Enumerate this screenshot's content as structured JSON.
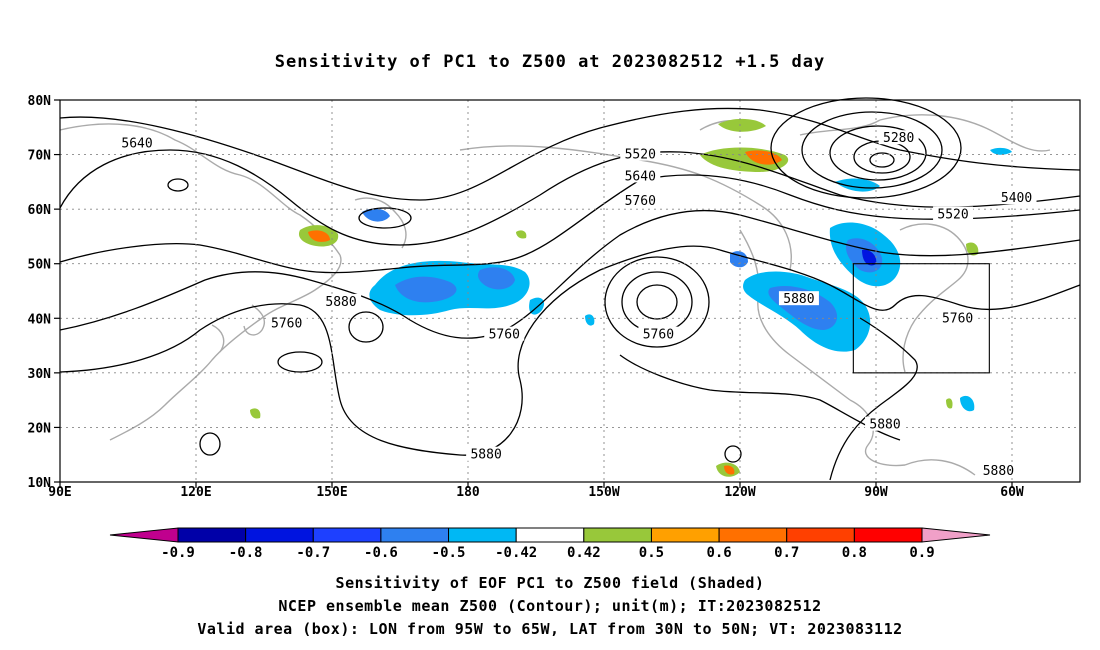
{
  "title": "Sensitivity of PC1 to Z500 at 2023082512 +1.5 day",
  "map": {
    "lat_labels": [
      "80N",
      "70N",
      "60N",
      "50N",
      "40N",
      "30N",
      "20N",
      "10N"
    ],
    "lon_labels": [
      "90E",
      "120E",
      "150E",
      "180",
      "150W",
      "120W",
      "90W",
      "60W"
    ],
    "grid": true,
    "valid_box": {
      "lon_west": "95W",
      "lon_east": "65W",
      "lat_south": "30N",
      "lat_north": "50N"
    },
    "contour_labels": [
      {
        "text": "5640",
        "lon": 107,
        "lat": 72
      },
      {
        "text": "5520",
        "lon": -142,
        "lat": 70
      },
      {
        "text": "5640",
        "lon": -142,
        "lat": 66
      },
      {
        "text": "5760",
        "lon": -142,
        "lat": 61.5
      },
      {
        "text": "5280",
        "lon": -85,
        "lat": 73
      },
      {
        "text": "5400",
        "lon": -59,
        "lat": 62
      },
      {
        "text": "5520",
        "lon": -73,
        "lat": 59
      },
      {
        "text": "5880",
        "lon": 152,
        "lat": 43
      },
      {
        "text": "5760",
        "lon": 140,
        "lat": 39
      },
      {
        "text": "5760",
        "lon": -172,
        "lat": 37
      },
      {
        "text": "5760",
        "lon": -138,
        "lat": 37
      },
      {
        "text": "5880",
        "lon": -107,
        "lat": 43.5
      },
      {
        "text": "5760",
        "lon": -72,
        "lat": 40
      },
      {
        "text": "5880",
        "lon": -88,
        "lat": 20.5
      },
      {
        "text": "5880",
        "lon": -176,
        "lat": 15
      },
      {
        "text": "5880",
        "lon": -63,
        "lat": 12
      }
    ]
  },
  "colorbar": {
    "labels": [
      "-0.9",
      "-0.8",
      "-0.7",
      "-0.6",
      "-0.5",
      "-0.42",
      "0.42",
      "0.5",
      "0.6",
      "0.7",
      "0.8",
      "0.9"
    ],
    "colors": [
      "#c0008e",
      "#0000a8",
      "#0014e0",
      "#1e40ff",
      "#2e80f0",
      "#00b8f4",
      "#ffffff",
      "#98c83a",
      "#ffa000",
      "#ff7000",
      "#ff4000",
      "#ff0000",
      "#f0a0c8"
    ]
  },
  "footer": {
    "line1": "Sensitivity of EOF PC1 to Z500 field (Shaded)",
    "line2": "NCEP ensemble mean Z500 (Contour); unit(m); IT:2023082512",
    "line3": "Valid area (box): LON from 95W to 65W, LAT from 30N to 50N; VT: 2023083112"
  }
}
